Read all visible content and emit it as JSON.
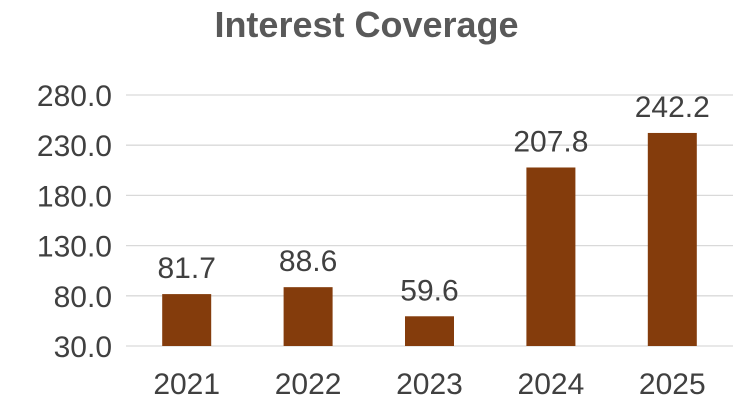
{
  "chart_data": {
    "type": "bar",
    "title": "Interest Coverage",
    "xlabel": "",
    "ylabel": "",
    "categories": [
      "2021",
      "2022",
      "2023",
      "2024",
      "2025"
    ],
    "values": [
      81.7,
      88.6,
      59.6,
      207.8,
      242.2
    ],
    "data_labels": [
      "81.7",
      "88.6",
      "59.6",
      "207.8",
      "242.2"
    ],
    "yticks": [
      30.0,
      80.0,
      130.0,
      180.0,
      230.0,
      280.0
    ],
    "ytick_labels": [
      "30.0",
      "80.0",
      "130.0",
      "180.0",
      "230.0",
      "280.0"
    ],
    "ylim": [
      30,
      280
    ],
    "grid": true,
    "legend": "none",
    "bar_color": "#843C0C",
    "gridline_color": "#D9D9D9"
  }
}
